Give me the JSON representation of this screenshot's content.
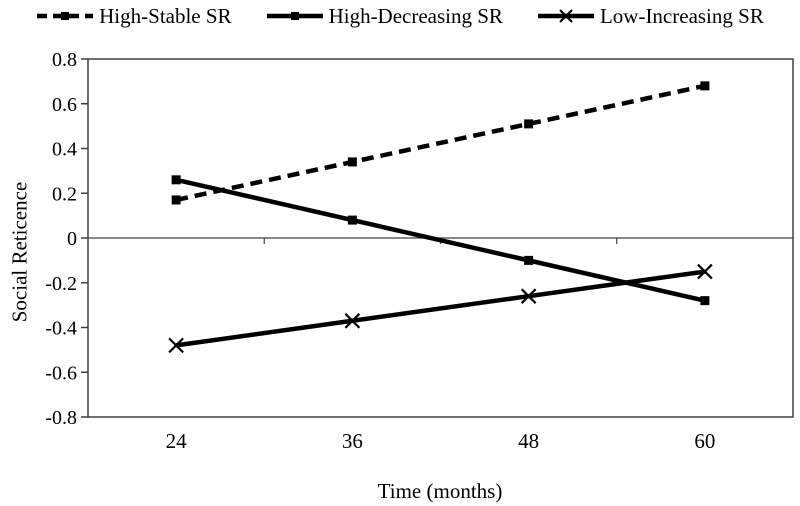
{
  "chart_data": {
    "type": "line",
    "title": "",
    "xlabel": "Time (months)",
    "ylabel": "Social Reticence",
    "categories": [
      "24",
      "36",
      "48",
      "60"
    ],
    "series": [
      {
        "name": "High-Stable SR",
        "values": [
          0.17,
          0.34,
          0.51,
          0.68
        ],
        "line_style": "dashed",
        "marker": "square"
      },
      {
        "name": "High-Decreasing SR",
        "values": [
          0.26,
          0.08,
          -0.1,
          -0.28
        ],
        "line_style": "solid",
        "marker": "square"
      },
      {
        "name": "Low-Increasing SR",
        "values": [
          -0.48,
          -0.37,
          -0.26,
          -0.15
        ],
        "line_style": "solid",
        "marker": "x"
      }
    ],
    "ylim": [
      -0.8,
      0.8
    ],
    "ytick_values": [
      0.8,
      0.6,
      0.4,
      0.2,
      0,
      -0.2,
      -0.4,
      -0.6,
      -0.8
    ],
    "ytick_labels": [
      "0.8",
      "0.6",
      "0.4",
      "0.2",
      "0",
      "-0.2",
      "-0.4",
      "-0.6",
      "-0.8"
    ],
    "legend_position": "top",
    "grid": false,
    "zero_line": true,
    "colors": {
      "series": "#000000",
      "frame": "#404040",
      "zero_line": "#404040",
      "text": "#000000"
    }
  }
}
